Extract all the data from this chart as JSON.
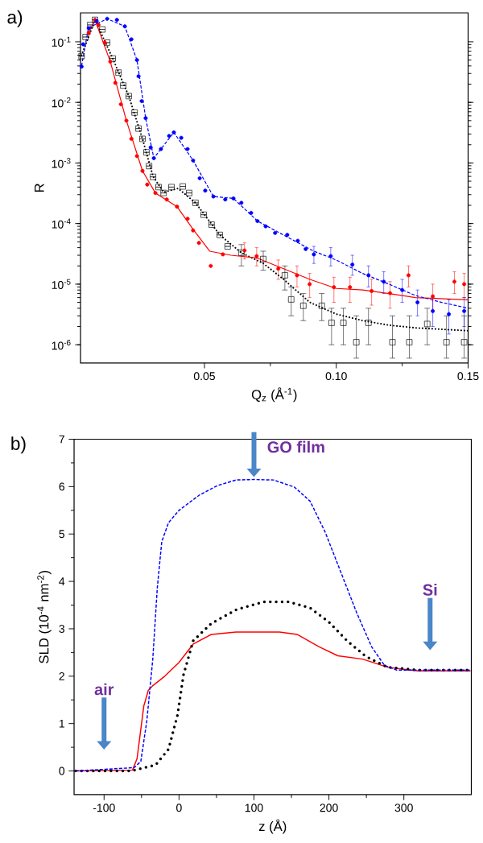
{
  "chart_data": [
    {
      "type": "scatter",
      "title": "a)",
      "xlabel": "Q$_{z}$ (Å$^{-1}$)",
      "ylabel": "R",
      "log": "y",
      "xlim": [
        0.003,
        0.15
      ],
      "xticks": [
        0.05,
        {
          "value": 0.1,
          "label": "0.10"
        },
        0.15
      ],
      "ylim": [
        5e-07,
        0.3
      ],
      "yticks": [
        {
          "value": 1e-06,
          "label": "10$^{-6}$"
        },
        {
          "value": 1e-05,
          "label": "10$^{-5}$"
        },
        {
          "value": 0.0001,
          "label": "10$^{-4}$"
        },
        {
          "value": 0.001,
          "label": "10$^{-3}$"
        },
        {
          "value": 0.01,
          "label": "10$^{-2}$"
        },
        {
          "value": 0.1,
          "label": "10$^{-1}$"
        }
      ],
      "series": [
        {
          "type": "scatter",
          "color": "#000000",
          "marker": "square",
          "x": [
            0.0034,
            0.0049,
            0.0067,
            0.0085,
            0.0113,
            0.0131,
            0.0152,
            0.0174,
            0.0192,
            0.0213,
            0.0235,
            0.025,
            0.0265,
            0.028,
            0.029,
            0.0305,
            0.0326,
            0.0345,
            0.0375,
            0.0418,
            0.0442,
            0.0466,
            0.0497,
            0.0527,
            0.0558,
            0.0588,
            0.064,
            0.0723,
            0.0805,
            0.0829,
            0.0875,
            0.0945,
            0.0982,
            0.1027,
            0.1076,
            0.1122,
            0.1213,
            0.1277,
            0.1345,
            0.1418,
            0.1485
          ],
          "values": [
            0.058,
            0.12,
            0.19,
            0.23,
            0.16,
            0.097,
            0.053,
            0.031,
            0.019,
            0.0127,
            0.0068,
            0.0037,
            0.0025,
            0.0015,
            0.00089,
            0.00059,
            0.0004,
            0.00032,
            0.0004,
            0.00041,
            0.00032,
            0.00022,
            0.00014,
            9.6e-05,
            6.5e-05,
            4.2e-05,
            3.3e-05,
            2.6e-05,
            1.4e-05,
            5.6e-06,
            4.4e-06,
            4.4e-06,
            2.3e-06,
            2.3e-06,
            1.1e-06,
            2.3e-06,
            1.1e-06,
            1.1e-06,
            2.2e-06,
            1.1e-06,
            1.1e-06
          ],
          "errors": [
            null,
            null,
            null,
            null,
            null,
            null,
            null,
            null,
            null,
            null,
            null,
            null,
            null,
            null,
            null,
            null,
            null,
            null,
            null,
            null,
            null,
            null,
            null,
            null,
            null,
            null,
            [
              2e-05,
              4.5e-05
            ],
            [
              1.7e-05,
              3.5e-05
            ],
            [
              8e-06,
              2e-05
            ],
            [
              3e-06,
              9e-06
            ],
            [
              2.5e-06,
              7e-06
            ],
            [
              2.5e-06,
              7e-06
            ],
            [
              1e-06,
              4e-06
            ],
            [
              1e-06,
              4e-06
            ],
            [
              6e-07,
              3e-06
            ],
            [
              1e-06,
              4e-06
            ],
            [
              6e-07,
              3e-06
            ],
            [
              6e-07,
              3e-06
            ],
            [
              1e-06,
              4e-06
            ],
            [
              6e-07,
              3e-06
            ],
            [
              6e-07,
              3e-06
            ]
          ]
        },
        {
          "type": "scatter",
          "color": "#ff0000",
          "marker": "circle",
          "x": [
            0.0061,
            0.0085,
            0.0098,
            0.0122,
            0.0143,
            0.0162,
            0.0183,
            0.0204,
            0.0223,
            0.0244,
            0.0265,
            0.0283,
            0.0314,
            0.0357,
            0.0396,
            0.0436,
            0.0457,
            0.0479,
            0.0524,
            0.057,
            0.0652,
            0.0698,
            0.078,
            0.0851,
            0.0899,
            0.0991,
            0.1052,
            0.1134,
            0.1204,
            0.1274,
            0.1366,
            0.1448,
            0.1485
          ],
          "values": [
            0.14,
            0.23,
            0.19,
            0.097,
            0.047,
            0.021,
            0.0093,
            0.005,
            0.0025,
            0.0013,
            0.00074,
            0.00044,
            0.00032,
            0.00025,
            0.00019,
            0.00012,
            7.7e-05,
            4.8e-05,
            2e-05,
            3.1e-05,
            3.6e-05,
            2.9e-05,
            1.8e-05,
            1.4e-05,
            1e-05,
            8.9e-06,
            8.9e-06,
            7.7e-06,
            7.1e-06,
            1.4e-05,
            6.3e-06,
            1.1e-05,
            1e-05
          ],
          "errors": [
            null,
            null,
            null,
            null,
            null,
            null,
            null,
            null,
            null,
            null,
            null,
            null,
            null,
            null,
            null,
            null,
            null,
            null,
            null,
            null,
            [
              2.6e-05,
              4.8e-05
            ],
            [
              2e-05,
              4e-05
            ],
            [
              1.2e-05,
              2.5e-05
            ],
            [
              9e-06,
              2e-05
            ],
            [
              6e-06,
              1.5e-05
            ],
            [
              5e-06,
              1.3e-05
            ],
            [
              5e-06,
              1.3e-05
            ],
            [
              4.5e-06,
              1.2e-05
            ],
            [
              4e-06,
              1.1e-05
            ],
            [
              9e-06,
              2e-05
            ],
            [
              3.5e-06,
              1e-05
            ],
            [
              7e-06,
              1.6e-05
            ],
            [
              6e-06,
              1.5e-05
            ]
          ]
        },
        {
          "type": "scatter",
          "color": "#0000ff",
          "marker": "circle",
          "x": [
            0.0034,
            0.004,
            0.0061,
            0.0091,
            0.0131,
            0.0168,
            0.0198,
            0.0223,
            0.0244,
            0.025,
            0.0262,
            0.0277,
            0.0296,
            0.0308,
            0.0335,
            0.0366,
            0.0384,
            0.0412,
            0.0436,
            0.0457,
            0.0482,
            0.0503,
            0.0534,
            0.0579,
            0.061,
            0.064,
            0.0677,
            0.0701,
            0.0732,
            0.0768,
            0.0814,
            0.0854,
            0.0884,
            0.0915,
            0.0979,
            0.1061,
            0.1122,
            0.118,
            0.125,
            0.1308,
            0.1366,
            0.1427,
            0.1485
          ],
          "values": [
            0.039,
            0.091,
            0.168,
            0.22,
            0.24,
            0.23,
            0.18,
            0.11,
            0.05,
            0.027,
            0.0105,
            0.0055,
            0.0018,
            0.0012,
            0.0017,
            0.0028,
            0.0032,
            0.0026,
            0.0017,
            0.0011,
            0.00056,
            0.00035,
            0.00028,
            0.00025,
            0.00026,
            0.00022,
            0.00015,
            0.00011,
            9e-05,
            7e-05,
            6.5e-05,
            5.2e-05,
            3.8e-05,
            3.1e-05,
            2.9e-05,
            2.1e-05,
            1.4e-05,
            1.1e-05,
            8e-06,
            5e-06,
            3.6e-06,
            3.2e-06,
            3.6e-06
          ],
          "errors": [
            null,
            null,
            null,
            null,
            null,
            null,
            null,
            null,
            null,
            null,
            null,
            null,
            null,
            null,
            null,
            null,
            null,
            null,
            null,
            null,
            null,
            null,
            null,
            null,
            null,
            null,
            null,
            null,
            null,
            null,
            null,
            null,
            null,
            [
              2.2e-05,
              4.2e-05
            ],
            [
              2e-05,
              4e-05
            ],
            [
              1.4e-05,
              3e-05
            ],
            [
              9e-06,
              2e-05
            ],
            [
              7e-06,
              1.6e-05
            ],
            [
              5e-06,
              1.2e-05
            ],
            [
              3e-06,
              8e-06
            ],
            [
              2e-06,
              6e-06
            ],
            [
              1.5e-06,
              5.5e-06
            ],
            [
              2e-06,
              6e-06
            ]
          ]
        },
        {
          "type": "line",
          "color": "#000000",
          "marker": "none",
          "line_style": "dotted",
          "x": [
            0.0034,
            0.0085,
            0.0152,
            0.0213,
            0.0265,
            0.0305,
            0.0345,
            0.04,
            0.0466,
            0.0558,
            0.064,
            0.0723,
            0.08,
            0.09,
            0.1,
            0.11,
            0.12,
            0.13,
            0.15
          ],
          "values": [
            0.06,
            0.23,
            0.053,
            0.0127,
            0.0025,
            0.0006,
            0.00033,
            0.00038,
            0.00022,
            6.5e-05,
            3.3e-05,
            2.2e-05,
            1.2e-05,
            5e-06,
            3.2e-06,
            2.5e-06,
            2.1e-06,
            1.9e-06,
            1.7e-06
          ]
        },
        {
          "type": "line",
          "color": "#ff0000",
          "marker": "none",
          "line_style": "solid",
          "x": [
            0.006,
            0.0085,
            0.0143,
            0.0204,
            0.0265,
            0.0314,
            0.0396,
            0.0457,
            0.052,
            0.06,
            0.07,
            0.08,
            0.09,
            0.1,
            0.11,
            0.12,
            0.13,
            0.15
          ],
          "values": [
            0.14,
            0.23,
            0.047,
            0.005,
            0.00074,
            0.00032,
            0.00019,
            8e-05,
            3.5e-05,
            3e-05,
            2.7e-05,
            1.8e-05,
            1.2e-05,
            8.5e-06,
            8e-06,
            7e-06,
            6e-06,
            5.5e-06
          ]
        },
        {
          "type": "line",
          "color": "#0000ff",
          "marker": "none",
          "line_style": "dashed",
          "x": [
            0.0034,
            0.006,
            0.0131,
            0.0198,
            0.0244,
            0.0277,
            0.0308,
            0.0384,
            0.0457,
            0.0534,
            0.061,
            0.0701,
            0.0814,
            0.0915,
            0.1,
            0.11,
            0.12,
            0.13,
            0.14,
            0.15
          ],
          "values": [
            0.04,
            0.17,
            0.24,
            0.18,
            0.05,
            0.0055,
            0.0012,
            0.0032,
            0.0011,
            0.00028,
            0.00026,
            0.00011,
            6e-05,
            3.5e-05,
            2.5e-05,
            1.5e-05,
            1e-05,
            6.5e-06,
            5e-06,
            4e-06
          ]
        }
      ]
    },
    {
      "type": "line",
      "title": "b)",
      "xlabel": "z (Å)",
      "ylabel": "SLD (10$^{-4}$ nm$^{-2}$)",
      "xlim": [
        -140,
        390
      ],
      "xticks": [
        -100,
        0,
        100,
        200,
        300
      ],
      "ylim": [
        -0.5,
        7
      ],
      "yticks": [
        0,
        1,
        2,
        3,
        4,
        5,
        6,
        7
      ],
      "series": [
        {
          "color": "#ff0000",
          "line_style": "solid",
          "x": [
            -138,
            -62,
            -56,
            -47,
            -41,
            -35,
            -19,
            0,
            19,
            43,
            76,
            134,
            158,
            187,
            212,
            245,
            278,
            319,
            389
          ],
          "values": [
            0,
            0.02,
            0.26,
            1.37,
            1.7,
            1.8,
            2.0,
            2.29,
            2.68,
            2.88,
            2.93,
            2.93,
            2.88,
            2.62,
            2.43,
            2.36,
            2.19,
            2.11,
            2.11
          ]
        },
        {
          "color": "#000000",
          "line_style": "dotted",
          "x": [
            -138,
            -64,
            -31,
            -14,
            -2,
            6,
            19,
            43,
            76,
            113,
            146,
            175,
            200,
            224,
            249,
            278,
            319,
            389
          ],
          "values": [
            0,
            0,
            0.13,
            0.46,
            1.18,
            2.03,
            2.75,
            3.11,
            3.4,
            3.57,
            3.57,
            3.44,
            3.14,
            2.75,
            2.42,
            2.19,
            2.13,
            2.13
          ]
        },
        {
          "color": "#0000ff",
          "line_style": "dashed",
          "x": [
            -138,
            -60,
            -51,
            -43,
            -35,
            -29,
            -23,
            -14,
            0,
            27,
            51,
            76,
            100,
            126,
            154,
            175,
            195,
            216,
            237,
            257,
            274,
            290,
            389
          ],
          "values": [
            0,
            0.07,
            0.2,
            1.05,
            2.36,
            3.86,
            4.84,
            5.24,
            5.5,
            5.82,
            6.02,
            6.14,
            6.15,
            6.14,
            5.99,
            5.69,
            5.04,
            4.19,
            3.34,
            2.62,
            2.23,
            2.13,
            2.13
          ]
        }
      ],
      "annotations": [
        "GO film",
        "air",
        "Si"
      ]
    }
  ]
}
